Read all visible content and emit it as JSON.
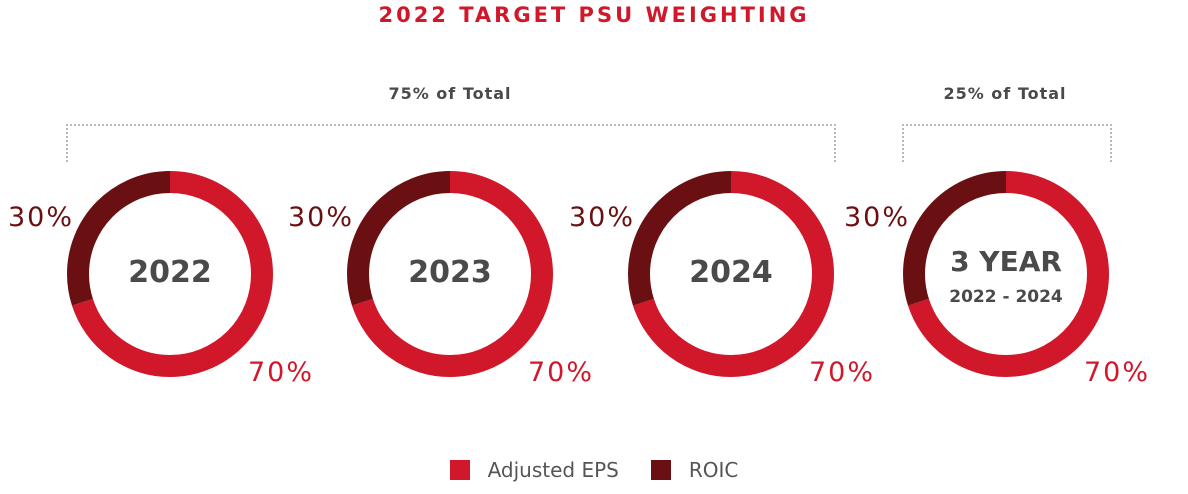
{
  "colors": {
    "accent": "#d0182a",
    "adjusted_eps": "#d0182a",
    "roic": "#6b1012",
    "text": "#4a4a4a"
  },
  "chart_data": {
    "type": "pie",
    "title": "2022 TARGET PSU WEIGHTING",
    "groups": [
      {
        "label": "75% of Total"
      },
      {
        "label": "25% of Total"
      }
    ],
    "legend": [
      {
        "name": "Adjusted EPS",
        "color": "#d0182a"
      },
      {
        "name": "ROIC",
        "color": "#6b1012"
      }
    ],
    "charts": [
      {
        "center": "2022",
        "sub": "",
        "slices": [
          {
            "name": "Adjusted EPS",
            "value": 70,
            "label": "70%"
          },
          {
            "name": "ROIC",
            "value": 30,
            "label": "30%"
          }
        ]
      },
      {
        "center": "2023",
        "sub": "",
        "slices": [
          {
            "name": "Adjusted EPS",
            "value": 70,
            "label": "70%"
          },
          {
            "name": "ROIC",
            "value": 30,
            "label": "30%"
          }
        ]
      },
      {
        "center": "2024",
        "sub": "",
        "slices": [
          {
            "name": "Adjusted EPS",
            "value": 70,
            "label": "70%"
          },
          {
            "name": "ROIC",
            "value": 30,
            "label": "30%"
          }
        ]
      },
      {
        "center": "3 YEAR",
        "sub": "2022 - 2024",
        "slices": [
          {
            "name": "Adjusted EPS",
            "value": 70,
            "label": "70%"
          },
          {
            "name": "ROIC",
            "value": 30,
            "label": "30%"
          }
        ]
      }
    ]
  }
}
